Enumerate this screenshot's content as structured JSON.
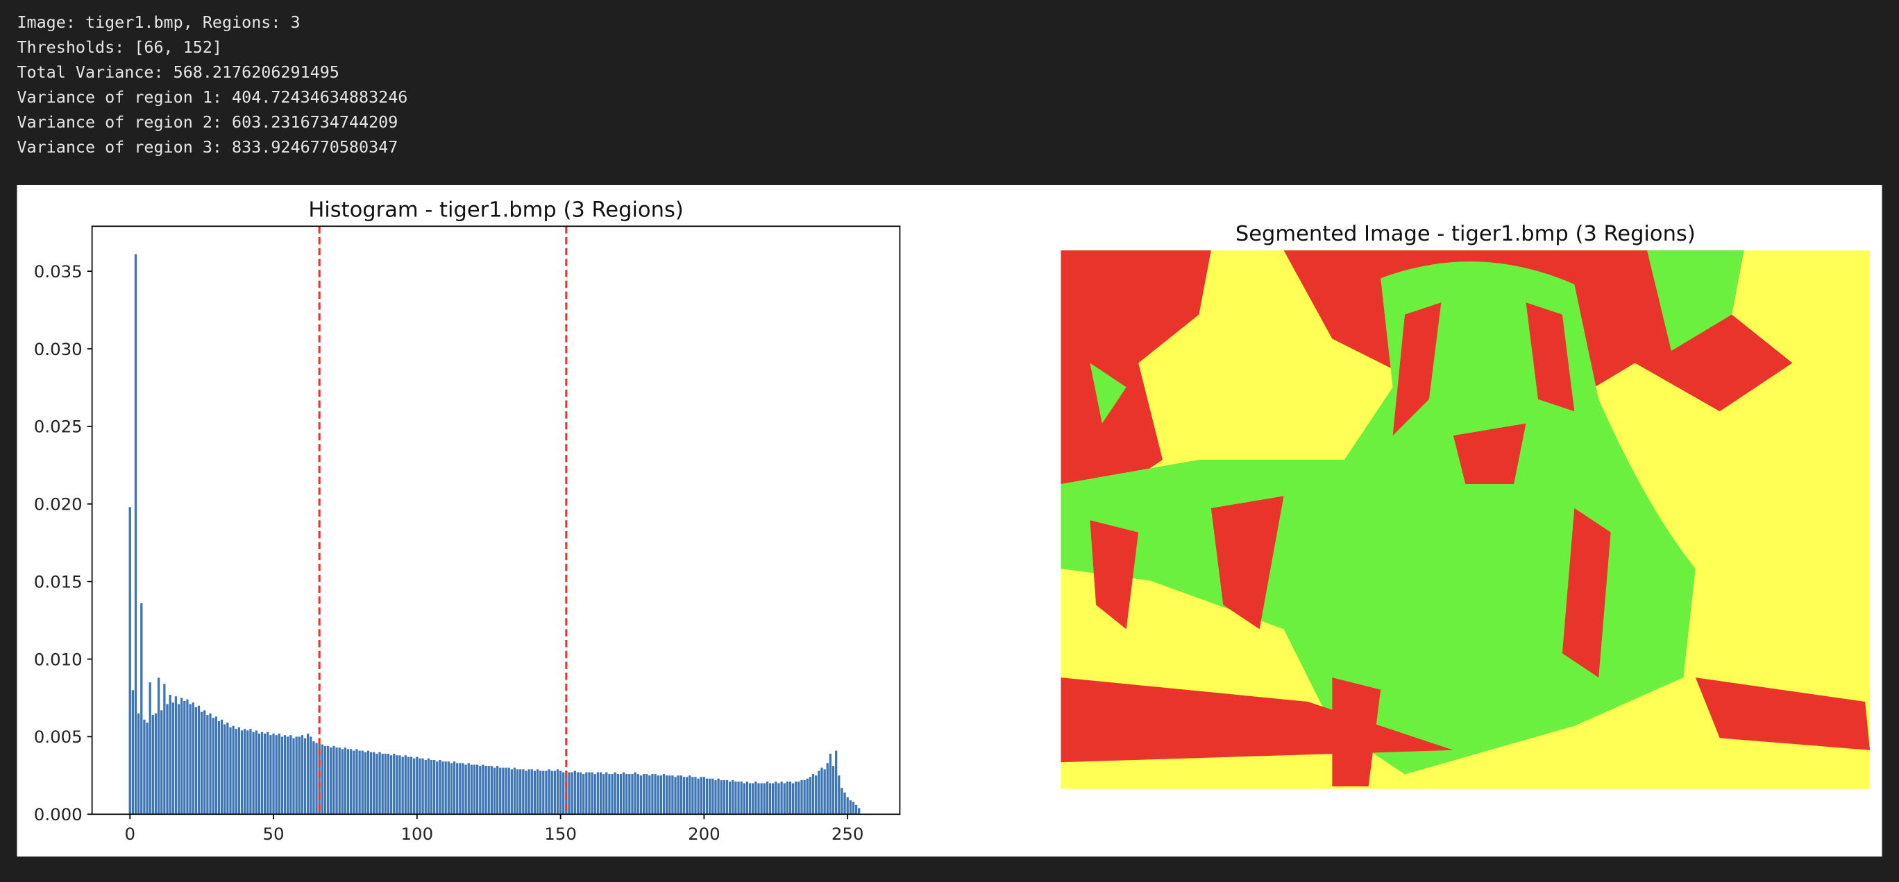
{
  "console": [
    "Image: tiger1.bmp, Regions: 3",
    "Thresholds: [66, 152]",
    "Total Variance: 568.2176206291495",
    "Variance of region 1: 404.72434634883246",
    "Variance of region 2: 603.2316734744209",
    "Variance of region 3: 833.9246770580347"
  ],
  "chart_data": [
    {
      "type": "bar",
      "title": "Histogram - tiger1.bmp (3 Regions)",
      "color": "#3e75b4",
      "x": [
        0,
        1,
        2,
        3,
        4,
        5,
        6,
        7,
        8,
        9,
        10,
        11,
        12,
        13,
        14,
        15,
        16,
        17,
        18,
        19,
        20,
        21,
        22,
        23,
        24,
        25,
        26,
        27,
        28,
        29,
        30,
        31,
        32,
        33,
        34,
        35,
        36,
        37,
        38,
        39,
        40,
        41,
        42,
        43,
        44,
        45,
        46,
        47,
        48,
        49,
        50,
        51,
        52,
        53,
        54,
        55,
        56,
        57,
        58,
        59,
        60,
        61,
        62,
        63,
        64,
        65,
        66,
        67,
        68,
        69,
        70,
        71,
        72,
        73,
        74,
        75,
        76,
        77,
        78,
        79,
        80,
        81,
        82,
        83,
        84,
        85,
        86,
        87,
        88,
        89,
        90,
        91,
        92,
        93,
        94,
        95,
        96,
        97,
        98,
        99,
        100,
        101,
        102,
        103,
        104,
        105,
        106,
        107,
        108,
        109,
        110,
        111,
        112,
        113,
        114,
        115,
        116,
        117,
        118,
        119,
        120,
        121,
        122,
        123,
        124,
        125,
        126,
        127,
        128,
        129,
        130,
        131,
        132,
        133,
        134,
        135,
        136,
        137,
        138,
        139,
        140,
        141,
        142,
        143,
        144,
        145,
        146,
        147,
        148,
        149,
        150,
        151,
        152,
        153,
        154,
        155,
        156,
        157,
        158,
        159,
        160,
        161,
        162,
        163,
        164,
        165,
        166,
        167,
        168,
        169,
        170,
        171,
        172,
        173,
        174,
        175,
        176,
        177,
        178,
        179,
        180,
        181,
        182,
        183,
        184,
        185,
        186,
        187,
        188,
        189,
        190,
        191,
        192,
        193,
        194,
        195,
        196,
        197,
        198,
        199,
        200,
        201,
        202,
        203,
        204,
        205,
        206,
        207,
        208,
        209,
        210,
        211,
        212,
        213,
        214,
        215,
        216,
        217,
        218,
        219,
        220,
        221,
        222,
        223,
        224,
        225,
        226,
        227,
        228,
        229,
        230,
        231,
        232,
        233,
        234,
        235,
        236,
        237,
        238,
        239,
        240,
        241,
        242,
        243,
        244,
        245,
        246,
        247,
        248,
        249,
        250,
        251,
        252,
        253,
        254,
        255
      ],
      "values": [
        0.0198,
        0.008,
        0.0361,
        0.0065,
        0.0136,
        0.0061,
        0.0059,
        0.0085,
        0.0064,
        0.0065,
        0.0088,
        0.0067,
        0.0084,
        0.0071,
        0.0077,
        0.0072,
        0.0076,
        0.0071,
        0.0075,
        0.0073,
        0.0074,
        0.0071,
        0.0072,
        0.0069,
        0.007,
        0.0066,
        0.0067,
        0.0064,
        0.0065,
        0.0062,
        0.0063,
        0.006,
        0.0061,
        0.0058,
        0.0059,
        0.0056,
        0.0057,
        0.0055,
        0.0056,
        0.0054,
        0.0055,
        0.0054,
        0.0055,
        0.0053,
        0.0054,
        0.0052,
        0.0053,
        0.0052,
        0.0053,
        0.0051,
        0.0052,
        0.0051,
        0.0052,
        0.005,
        0.0051,
        0.005,
        0.0051,
        0.0049,
        0.005,
        0.005,
        0.0051,
        0.0049,
        0.0052,
        0.005,
        0.0047,
        0.0046,
        0.0045,
        0.0045,
        0.0044,
        0.0044,
        0.0043,
        0.0044,
        0.0043,
        0.0043,
        0.0042,
        0.0043,
        0.0042,
        0.0042,
        0.0041,
        0.0042,
        0.0041,
        0.0041,
        0.004,
        0.0041,
        0.004,
        0.004,
        0.0039,
        0.004,
        0.0039,
        0.0039,
        0.0039,
        0.0038,
        0.0039,
        0.0038,
        0.0038,
        0.0037,
        0.0038,
        0.0037,
        0.0037,
        0.0036,
        0.0037,
        0.0036,
        0.0036,
        0.0035,
        0.0036,
        0.0035,
        0.0035,
        0.0034,
        0.0035,
        0.0034,
        0.0034,
        0.0034,
        0.0033,
        0.0034,
        0.0033,
        0.0033,
        0.0033,
        0.0032,
        0.0033,
        0.0032,
        0.0032,
        0.0032,
        0.0031,
        0.0032,
        0.0031,
        0.0031,
        0.0031,
        0.003,
        0.0031,
        0.003,
        0.003,
        0.003,
        0.003,
        0.0029,
        0.003,
        0.0029,
        0.0029,
        0.0029,
        0.0028,
        0.0029,
        0.0029,
        0.0028,
        0.0029,
        0.0028,
        0.0028,
        0.0028,
        0.0029,
        0.0028,
        0.0028,
        0.0029,
        0.0028,
        0.0027,
        0.0028,
        0.0027,
        0.0027,
        0.0028,
        0.0027,
        0.0027,
        0.0026,
        0.0027,
        0.0027,
        0.0027,
        0.0026,
        0.0027,
        0.0027,
        0.0026,
        0.0027,
        0.0026,
        0.0026,
        0.0027,
        0.0026,
        0.0026,
        0.0027,
        0.0026,
        0.0026,
        0.0026,
        0.0027,
        0.0026,
        0.0025,
        0.0026,
        0.0026,
        0.0025,
        0.0026,
        0.0026,
        0.0025,
        0.0025,
        0.0026,
        0.0025,
        0.0025,
        0.0025,
        0.0024,
        0.0025,
        0.0025,
        0.0024,
        0.0024,
        0.0025,
        0.0024,
        0.0024,
        0.0023,
        0.0024,
        0.0024,
        0.0023,
        0.0023,
        0.0023,
        0.0022,
        0.0023,
        0.0022,
        0.0022,
        0.0022,
        0.0021,
        0.0022,
        0.0021,
        0.0021,
        0.0021,
        0.002,
        0.0021,
        0.002,
        0.002,
        0.0021,
        0.002,
        0.002,
        0.002,
        0.0021,
        0.002,
        0.002,
        0.0021,
        0.002,
        0.0021,
        0.002,
        0.0021,
        0.0021,
        0.002,
        0.0021,
        0.0021,
        0.0022,
        0.0022,
        0.0023,
        0.0024,
        0.0026,
        0.0025,
        0.0028,
        0.003,
        0.0029,
        0.0033,
        0.0039,
        0.0031,
        0.0041,
        0.0025,
        0.0017,
        0.0014,
        0.0011,
        0.0009,
        0.0008,
        0.0006,
        0.0004,
        0.0
      ],
      "xlim": [
        -13.2,
        268.2
      ],
      "xticks": [
        0,
        50,
        100,
        150,
        200,
        250
      ],
      "ylim": [
        0,
        0.0379
      ],
      "yticks": [
        {
          "value": 0,
          "label": "0.000"
        },
        {
          "value": 0.005,
          "label": "0.005"
        },
        {
          "value": 0.01,
          "label": "0.010"
        },
        {
          "value": 0.015,
          "label": "0.015"
        },
        {
          "value": 0.02,
          "label": "0.020"
        },
        {
          "value": 0.025,
          "label": "0.025"
        },
        {
          "value": 0.03,
          "label": "0.030"
        },
        {
          "value": 0.035,
          "label": "0.035"
        }
      ],
      "vlines": [
        66,
        152
      ],
      "vline_color": "#e4382c",
      "grid": false
    },
    {
      "type": "image",
      "title": "Segmented Image - tiger1.bmp (3 Regions)"
    }
  ]
}
